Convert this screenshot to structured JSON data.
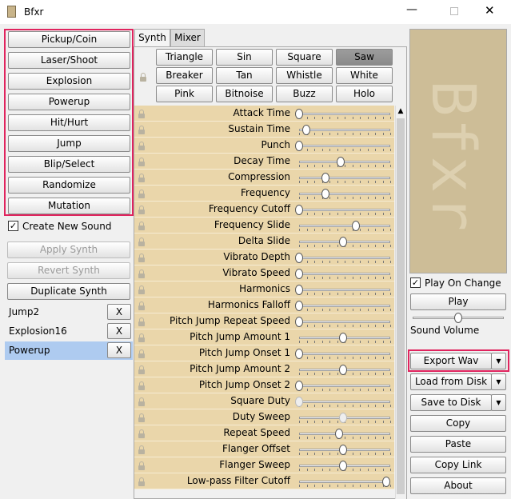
{
  "window": {
    "title": "Bfxr"
  },
  "presets": [
    "Pickup/Coin",
    "Laser/Shoot",
    "Explosion",
    "Powerup",
    "Hit/Hurt",
    "Jump",
    "Blip/Select",
    "Randomize",
    "Mutation"
  ],
  "create_new_sound": {
    "label": "Create New Sound",
    "checked": true
  },
  "actions": [
    {
      "label": "Apply Synth",
      "disabled": true
    },
    {
      "label": "Revert Synth",
      "disabled": true
    },
    {
      "label": "Duplicate Synth",
      "disabled": false
    }
  ],
  "sounds": [
    {
      "name": "Jump2",
      "selected": false
    },
    {
      "name": "Explosion16",
      "selected": false
    },
    {
      "name": "Powerup",
      "selected": true
    }
  ],
  "remove_label": "X",
  "tabs": [
    {
      "label": "Synth",
      "active": true
    },
    {
      "label": "Mixer",
      "active": false
    }
  ],
  "waveforms": [
    {
      "label": "Triangle",
      "selected": false
    },
    {
      "label": "Sin",
      "selected": false
    },
    {
      "label": "Square",
      "selected": false
    },
    {
      "label": "Saw",
      "selected": true
    },
    {
      "label": "Breaker",
      "selected": false
    },
    {
      "label": "Tan",
      "selected": false
    },
    {
      "label": "Whistle",
      "selected": false
    },
    {
      "label": "White",
      "selected": false
    },
    {
      "label": "Pink",
      "selected": false
    },
    {
      "label": "Bitnoise",
      "selected": false
    },
    {
      "label": "Buzz",
      "selected": false
    },
    {
      "label": "Holo",
      "selected": false
    }
  ],
  "params": [
    {
      "label": "Attack Time",
      "value": 0,
      "disabled": false
    },
    {
      "label": "Sustain Time",
      "value": 0.08,
      "disabled": false
    },
    {
      "label": "Punch",
      "value": 0,
      "disabled": false
    },
    {
      "label": "Decay Time",
      "value": 0.46,
      "disabled": false
    },
    {
      "label": "Compression",
      "value": 0.29,
      "disabled": false
    },
    {
      "label": "Frequency",
      "value": 0.29,
      "disabled": false
    },
    {
      "label": "Frequency Cutoff",
      "value": 0,
      "disabled": false
    },
    {
      "label": "Frequency Slide",
      "value": 0.62,
      "disabled": false
    },
    {
      "label": "Delta Slide",
      "value": 0.48,
      "disabled": false
    },
    {
      "label": "Vibrato Depth",
      "value": 0,
      "disabled": false
    },
    {
      "label": "Vibrato Speed",
      "value": 0,
      "disabled": false
    },
    {
      "label": "Harmonics",
      "value": 0,
      "disabled": false
    },
    {
      "label": "Harmonics Falloff",
      "value": 0,
      "disabled": false
    },
    {
      "label": "Pitch Jump Repeat Speed",
      "value": 0,
      "disabled": false
    },
    {
      "label": "Pitch Jump Amount 1",
      "value": 0.48,
      "disabled": false
    },
    {
      "label": "Pitch Jump Onset 1",
      "value": 0,
      "disabled": false
    },
    {
      "label": "Pitch Jump Amount 2",
      "value": 0.48,
      "disabled": false
    },
    {
      "label": "Pitch Jump Onset 2",
      "value": 0,
      "disabled": false
    },
    {
      "label": "Square Duty",
      "value": 0,
      "disabled": true
    },
    {
      "label": "Duty Sweep",
      "value": 0.48,
      "disabled": true
    },
    {
      "label": "Repeat Speed",
      "value": 0.44,
      "disabled": false
    },
    {
      "label": "Flanger Offset",
      "value": 0.48,
      "disabled": false
    },
    {
      "label": "Flanger Sweep",
      "value": 0.48,
      "disabled": false
    },
    {
      "label": "Low-pass Filter Cutoff",
      "value": 0.96,
      "disabled": false
    }
  ],
  "logo": "Bfxr",
  "play_on_change": {
    "label": "Play On Change",
    "checked": true
  },
  "play": "Play",
  "volume": {
    "label": "Sound Volume",
    "value": 0.5
  },
  "file_buttons": [
    {
      "label": "Export Wav",
      "dropdown": true
    },
    {
      "label": "Load from Disk",
      "dropdown": true
    },
    {
      "label": "Save to Disk",
      "dropdown": true
    },
    {
      "label": "Copy",
      "dropdown": false
    },
    {
      "label": "Paste",
      "dropdown": false
    },
    {
      "label": "Copy Link",
      "dropdown": false
    },
    {
      "label": "About",
      "dropdown": false
    }
  ]
}
